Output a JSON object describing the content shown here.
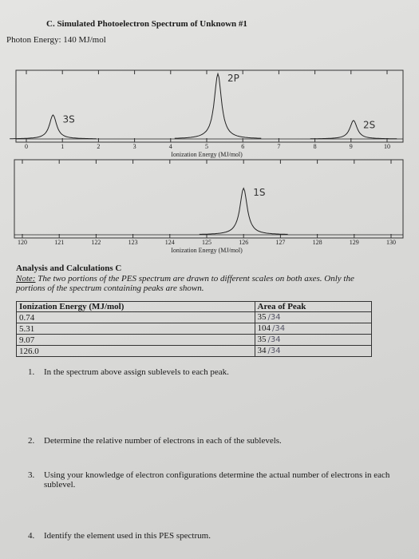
{
  "header": {
    "title": "C. Simulated Photoelectron Spectrum of Unknown #1",
    "subtitle": "Photon Energy: 140 MJ/mol"
  },
  "chart_data": [
    {
      "type": "spectrum",
      "xlabel": "Ionization Energy (MJ/mol)",
      "x": [
        0.74,
        5.31,
        9.07
      ],
      "values": [
        0.35,
        0.95,
        0.27
      ],
      "annotations": [
        "3S",
        "2P",
        "2S"
      ],
      "xlim": [
        0,
        10
      ],
      "xticks": [
        0,
        1,
        2,
        3,
        4,
        5,
        6,
        7,
        8,
        9,
        10
      ],
      "color": "#222"
    },
    {
      "type": "spectrum",
      "xlabel": "Ionization Energy (MJ/mol)",
      "x": [
        126.0
      ],
      "values": [
        0.62
      ],
      "annotations": [
        "1S"
      ],
      "xlim": [
        120,
        130
      ],
      "xticks": [
        120,
        121,
        122,
        123,
        124,
        125,
        126,
        127,
        128,
        129,
        130
      ],
      "color": "#222"
    }
  ],
  "analysis": {
    "heading": "Analysis and Calculations C",
    "note_label": "Note:",
    "note": "The two portions of the PES spectrum are drawn to different scales on both axes. Only the portions of the spectrum containing peaks are shown."
  },
  "table": {
    "header": [
      "Ionization Energy (MJ/mol)",
      "Area of Peak"
    ],
    "rows": [
      [
        "0.74",
        "35"
      ],
      [
        "5.31",
        "104"
      ],
      [
        "9.07",
        "35"
      ],
      [
        "126.0",
        "34"
      ]
    ],
    "handwritten": [
      "/34",
      "/34",
      "/34",
      "/34"
    ]
  },
  "questions": [
    {
      "number": "1.",
      "text": "In the spectrum above assign sublevels to each peak."
    },
    {
      "number": "2.",
      "text": "Determine the relative number of electrons in each of the sublevels."
    },
    {
      "number": "3.",
      "text": "Using your knowledge of electron configurations determine the actual number of electrons in each sublevel."
    },
    {
      "number": "4.",
      "text": "Identify the element used in this PES spectrum."
    }
  ]
}
